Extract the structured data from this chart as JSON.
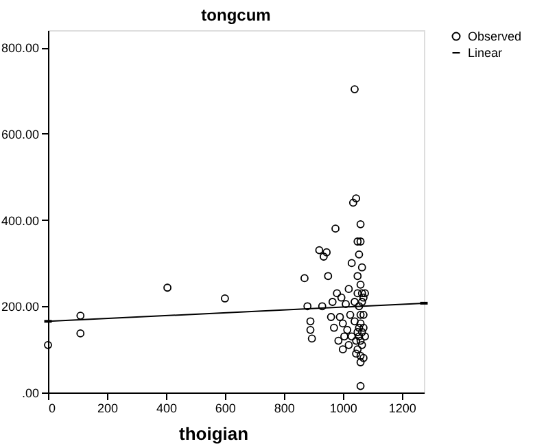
{
  "chart_data": {
    "type": "scatter",
    "title": "tongcum",
    "xlabel": "thoigian",
    "xlim": [
      0,
      1275
    ],
    "xticks": [
      0,
      200,
      400,
      600,
      800,
      {
        "value": 1000,
        "label": "1000"
      },
      {
        "value": 1200,
        "label": "1200"
      }
    ],
    "ylim": [
      0,
      840
    ],
    "yticks": [
      {
        "value": 0,
        "label": ".00"
      },
      {
        "value": 200,
        "label": "200.00"
      },
      {
        "value": 400,
        "label": "400.00"
      },
      {
        "value": 600,
        "label": "600.00"
      },
      {
        "value": 800,
        "label": "800.00"
      }
    ],
    "grid": false,
    "legend": "top right",
    "series": [
      {
        "name": "Observed",
        "marker": "circle",
        "color": "#000000",
        "x": [
          0,
          110,
          110,
          405,
          600,
          870,
          880,
          890,
          890,
          895,
          920,
          930,
          935,
          945,
          950,
          960,
          965,
          970,
          975,
          980,
          985,
          990,
          995,
          1000,
          1000,
          1005,
          1010,
          1015,
          1020,
          1020,
          1025,
          1030,
          1030,
          1035,
          1040,
          1040,
          1040,
          1045,
          1045,
          1045,
          1050,
          1050,
          1050,
          1050,
          1050,
          1055,
          1055,
          1055,
          1055,
          1060,
          1060,
          1060,
          1060,
          1060,
          1060,
          1060,
          1060,
          1060,
          1065,
          1065,
          1065,
          1065,
          1065,
          1070,
          1070,
          1070,
          1070,
          1075,
          1075
        ],
        "values": [
          110,
          178,
          137,
          243,
          218,
          265,
          200,
          165,
          145,
          125,
          330,
          200,
          315,
          325,
          270,
          175,
          210,
          150,
          380,
          230,
          120,
          175,
          220,
          160,
          100,
          130,
          205,
          145,
          240,
          110,
          180,
          130,
          300,
          440,
          703,
          210,
          165,
          450,
          120,
          90,
          350,
          270,
          230,
          140,
          100,
          320,
          200,
          150,
          130,
          390,
          350,
          250,
          180,
          160,
          120,
          85,
          70,
          15,
          290,
          230,
          210,
          140,
          110,
          220,
          180,
          150,
          80,
          230,
          130
        ]
      },
      {
        "name": "Linear",
        "type": "line",
        "marker": "none",
        "line_style": "solid",
        "color": "#000000",
        "x": [
          0,
          1275
        ],
        "values": [
          165,
          207
        ]
      }
    ]
  }
}
